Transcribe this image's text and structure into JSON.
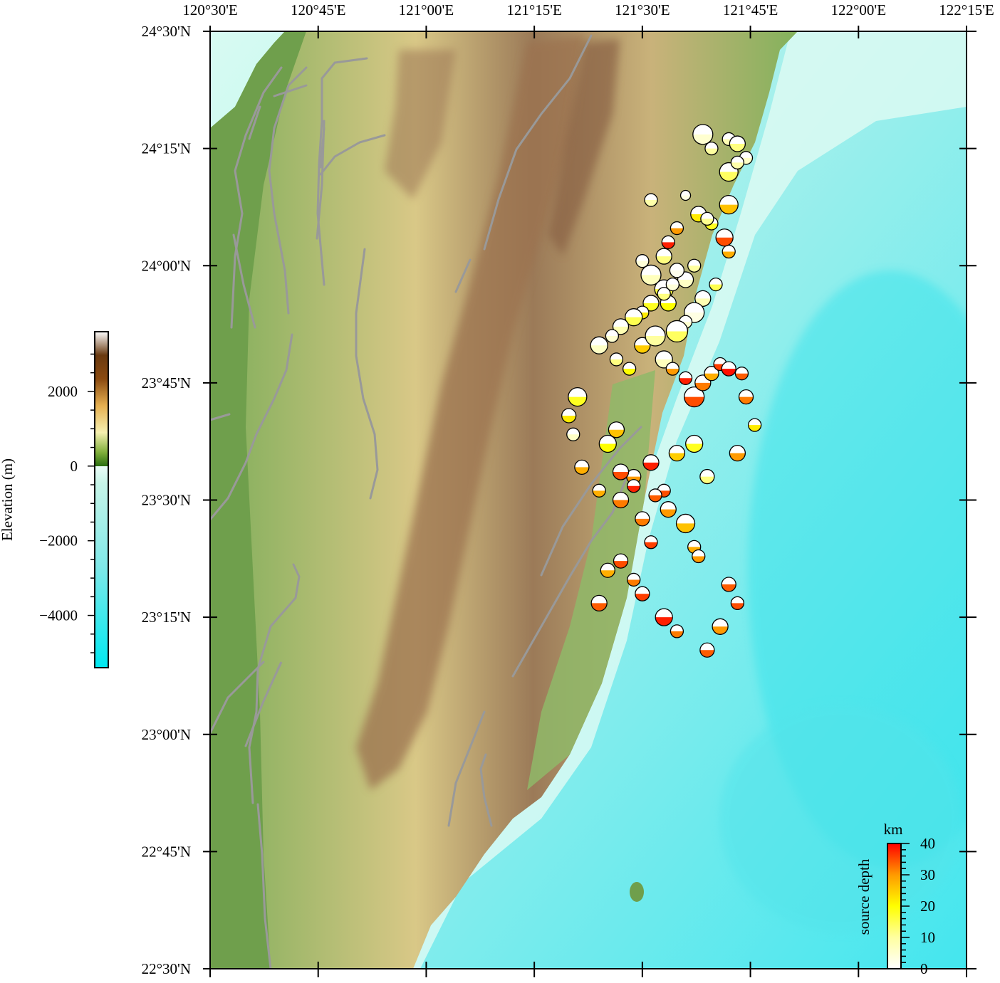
{
  "map": {
    "lon_labels": [
      "120°30'E",
      "120°45'E",
      "121°00'E",
      "121°15'E",
      "121°30'E",
      "121°45'E",
      "122°00'E",
      "122°15'E"
    ],
    "lat_labels": [
      "24°30'N",
      "24°15'N",
      "24°00'N",
      "23°45'N",
      "23°30'N",
      "23°15'N",
      "23°00'N",
      "22°45'N",
      "22°30'N"
    ],
    "lon_range": [
      120.5,
      122.25
    ],
    "lat_range": [
      22.5,
      24.5
    ],
    "fault_color": "#999999",
    "land_low_color": "#7fae5a",
    "land_high_color": "#8b6a4e",
    "sea_color": "#7fe8ec"
  },
  "elevation_colorbar": {
    "title": "Elevation (m)",
    "tick_labels": [
      "2000",
      "0",
      "−2000",
      "−4000"
    ],
    "tick_values": [
      2000,
      0,
      -2000,
      -4000
    ],
    "range": [
      -5400,
      3600
    ]
  },
  "depth_colorbar": {
    "title": "source depth",
    "unit": "km",
    "tick_labels": [
      "40",
      "30",
      "20",
      "10",
      "0"
    ],
    "tick_values": [
      40,
      30,
      20,
      10,
      0
    ]
  },
  "chart_data": {
    "type": "scatter",
    "title": "",
    "xlabel": "",
    "ylabel": "",
    "description_of_points": "earthquake epicenters, colored by source depth (km)",
    "series": [
      {
        "lon": [
          121.64,
          121.66,
          121.7,
          121.72,
          121.74,
          121.7,
          121.6,
          121.52,
          121.63,
          121.58,
          121.56,
          121.55,
          121.5,
          121.52,
          121.67,
          121.7,
          121.69,
          121.66,
          121.65,
          121.7,
          121.72,
          121.64,
          121.62,
          121.6,
          121.58,
          121.56,
          121.55,
          121.6,
          121.62,
          121.58,
          121.57,
          121.55,
          121.52,
          121.5,
          121.48,
          121.45,
          121.43,
          121.4,
          121.44,
          121.47,
          121.5,
          121.53,
          121.55,
          121.57,
          121.6,
          121.62,
          121.64,
          121.66,
          121.68,
          121.7,
          121.73,
          121.74,
          121.76,
          121.72,
          121.65,
          121.62,
          121.58,
          121.55,
          121.52,
          121.48,
          121.45,
          121.4,
          121.42,
          121.44,
          121.35,
          121.33,
          121.34,
          121.36,
          121.45,
          121.48,
          121.5,
          121.52,
          121.56,
          121.6,
          121.62,
          121.53,
          121.63,
          121.45,
          121.48,
          121.42,
          121.4,
          121.5,
          121.55,
          121.58,
          121.65,
          121.68,
          121.72,
          121.7
        ],
        "lat": [
          24.28,
          24.25,
          24.27,
          24.26,
          24.23,
          24.2,
          24.15,
          24.14,
          24.11,
          24.08,
          24.05,
          24.02,
          24.01,
          23.98,
          23.96,
          24.03,
          24.06,
          24.09,
          24.1,
          24.13,
          24.22,
          23.93,
          23.9,
          23.88,
          23.86,
          23.92,
          23.95,
          23.97,
          24.0,
          23.99,
          23.96,
          23.94,
          23.92,
          23.9,
          23.89,
          23.87,
          23.85,
          23.83,
          23.8,
          23.78,
          23.83,
          23.85,
          23.8,
          23.78,
          23.76,
          23.72,
          23.75,
          23.77,
          23.79,
          23.78,
          23.77,
          23.72,
          23.66,
          23.6,
          23.55,
          23.62,
          23.6,
          23.52,
          23.58,
          23.55,
          23.5,
          23.52,
          23.62,
          23.65,
          23.72,
          23.68,
          23.64,
          23.57,
          23.56,
          23.53,
          23.46,
          23.41,
          23.48,
          23.45,
          23.4,
          23.51,
          23.38,
          23.37,
          23.33,
          23.35,
          23.28,
          23.3,
          23.25,
          23.22,
          23.18,
          23.23,
          23.28,
          23.32
        ],
        "depth": [
          5,
          10,
          8,
          12,
          6,
          14,
          3,
          9,
          22,
          30,
          38,
          12,
          4,
          7,
          15,
          28,
          35,
          18,
          11,
          26,
          9,
          8,
          3,
          5,
          14,
          20,
          16,
          6,
          10,
          2,
          4,
          12,
          18,
          22,
          15,
          8,
          5,
          6,
          12,
          20,
          25,
          10,
          7,
          30,
          38,
          35,
          32,
          28,
          36,
          39,
          34,
          32,
          22,
          30,
          12,
          18,
          25,
          35,
          38,
          30,
          32,
          28,
          20,
          26,
          18,
          22,
          6,
          28,
          35,
          38,
          32,
          36,
          30,
          26,
          28,
          34,
          30,
          35,
          32,
          28,
          34,
          36,
          38,
          32,
          34,
          30,
          35,
          34
        ],
        "magnitude": [
          3.5,
          3,
          3,
          3.2,
          3,
          3.4,
          2.8,
          3,
          3.2,
          3,
          3,
          3.2,
          3,
          3.5,
          3,
          3,
          3.3,
          3,
          3,
          3.4,
          3,
          3.2,
          3.5,
          3,
          3.6,
          3.2,
          3.4,
          3.2,
          3,
          3.1,
          3,
          3,
          3.2,
          3,
          3.3,
          3.2,
          3,
          3.3,
          3,
          3,
          3.2,
          3.5,
          3.3,
          3,
          3,
          3.5,
          3.2,
          3.1,
          3,
          3.1,
          3,
          3.1,
          3,
          3.2,
          3.1,
          3.3,
          3.2,
          3,
          3.2,
          3.1,
          3.2,
          3,
          3.3,
          3.2,
          3.4,
          3.1,
          3,
          3.1,
          3.2,
          3,
          3.1,
          3,
          3.2,
          3.4,
          3,
          3,
          3,
          3.1,
          3,
          3.1,
          3.2,
          3.1,
          3.3,
          3,
          3.1,
          3.2,
          3,
          3.1
        ]
      }
    ]
  }
}
